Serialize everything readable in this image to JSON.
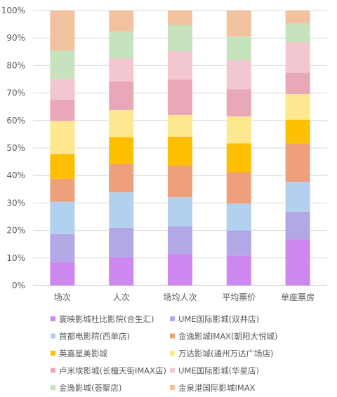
{
  "chart_data": {
    "type": "bar",
    "stacked": true,
    "percent": true,
    "categories": [
      "场次",
      "人次",
      "场均人次",
      "平均票价",
      "单座票房"
    ],
    "y_ticks": [
      "0%",
      "10%",
      "20%",
      "30%",
      "40%",
      "50%",
      "60%",
      "70%",
      "80%",
      "90%",
      "100%"
    ],
    "ylim": [
      0,
      100
    ],
    "grid": true,
    "legend_position": "bottom",
    "series": [
      {
        "name": "寰映影城杜比影院(合生汇)",
        "color": "#cc88ee",
        "values": [
          8.5,
          10.2,
          11.5,
          10.8,
          16.7
        ]
      },
      {
        "name": "UME国际影城(双井店)",
        "color": "#b4a7e6",
        "values": [
          10.2,
          10.8,
          10.1,
          9.2,
          10.1
        ]
      },
      {
        "name": "首都电影院(西单店)",
        "color": "#b2d1ef",
        "values": [
          11.8,
          12.9,
          10.5,
          9.8,
          10.9
        ]
      },
      {
        "name": "金逸影城IMAX(朝阳大悦城)",
        "color": "#eda07b",
        "values": [
          8.3,
          10.3,
          11.5,
          11.4,
          14.0
        ]
      },
      {
        "name": "英嘉星美影城",
        "color": "#fdbf00",
        "values": [
          9.0,
          9.8,
          10.5,
          10.5,
          8.6
        ]
      },
      {
        "name": "万达影城(通州万达广场店)",
        "color": "#fde88f",
        "values": [
          12.0,
          9.8,
          7.9,
          9.8,
          9.3
        ]
      },
      {
        "name": "卢米埃影城(长楹天街IMAX店)",
        "color": "#e8a8b8",
        "values": [
          7.7,
          10.4,
          12.9,
          9.9,
          7.8
        ]
      },
      {
        "name": "UME国际影城(华星店)",
        "color": "#f3c7cf",
        "values": [
          7.7,
          8.3,
          10.3,
          10.5,
          11.1
        ]
      },
      {
        "name": "金逸影城(荟聚店)",
        "color": "#c7e3bd",
        "values": [
          10.3,
          9.9,
          9.6,
          8.7,
          6.8
        ]
      },
      {
        "name": "金泉港国际影城IMAX",
        "color": "#f2c1a0",
        "values": [
          14.5,
          7.6,
          5.2,
          9.4,
          4.7
        ]
      }
    ]
  }
}
